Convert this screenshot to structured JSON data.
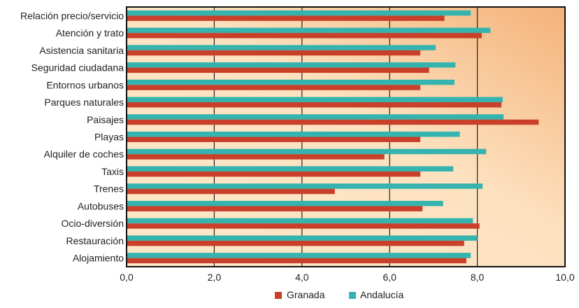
{
  "chart_data": {
    "type": "bar",
    "orientation": "horizontal",
    "categories": [
      "Relación precio/servicio",
      "Atención y trato",
      "Asistencia sanitaria",
      "Seguridad ciudadana",
      "Entornos urbanos",
      "Parques naturales",
      "Paisajes",
      "Playas",
      "Alquiler de coches",
      "Taxis",
      "Trenes",
      "Autobuses",
      "Ocio-diversión",
      "Restauración",
      "Alojamiento"
    ],
    "series": [
      {
        "name": "Granada",
        "color": "#c8402a",
        "values": [
          7.25,
          8.1,
          6.7,
          6.9,
          6.7,
          8.55,
          9.4,
          6.7,
          5.88,
          6.7,
          4.75,
          6.75,
          8.05,
          7.7,
          7.75
        ]
      },
      {
        "name": "Andalucía",
        "color": "#35b3ae",
        "values": [
          7.85,
          8.3,
          7.05,
          7.5,
          7.48,
          8.58,
          8.6,
          7.6,
          8.2,
          7.45,
          8.12,
          7.22,
          7.9,
          8.0,
          7.85
        ]
      }
    ],
    "xlim": [
      0,
      10
    ],
    "xticks": [
      "0,0",
      "2,0",
      "4,0",
      "6,0",
      "8,0",
      "10,0"
    ],
    "grid": "vertical",
    "legend": "bottom",
    "background_gradient": [
      "#fde7c8",
      "#f4b27a"
    ]
  }
}
